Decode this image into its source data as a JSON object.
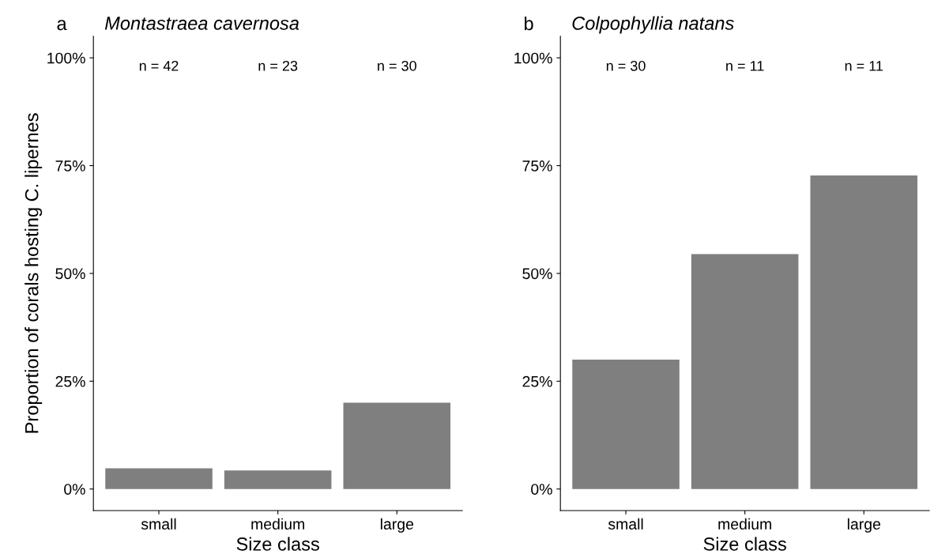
{
  "chart_data": [
    {
      "type": "bar",
      "title": "Montastraea cavernosa",
      "xlabel": "Size class",
      "ylabel": "Proportion of corals hosting C. lipernes",
      "categories": [
        "small",
        "medium",
        "large"
      ],
      "values": [
        4.8,
        4.3,
        20
      ],
      "color": "#7f7f7f",
      "ylim": [
        -5,
        105
      ],
      "yticks": [
        {
          "value": 0,
          "label": "0%"
        },
        {
          "value": 25,
          "label": "25%"
        },
        {
          "value": 50,
          "label": "50%"
        },
        {
          "value": 75,
          "label": "75%"
        },
        {
          "value": 100,
          "label": "100%"
        }
      ],
      "grid": false,
      "annotations": [
        "a",
        "n = 42",
        "n = 23",
        "n = 30"
      ]
    },
    {
      "type": "bar",
      "title": "Colpophyllia natans",
      "xlabel": "Size class",
      "categories": [
        "small",
        "medium",
        "large"
      ],
      "values": [
        30,
        54.5,
        72.7
      ],
      "color": "#7f7f7f",
      "ylim": [
        -5,
        105
      ],
      "yticks": [
        {
          "value": 0,
          "label": "0%"
        },
        {
          "value": 25,
          "label": "25%"
        },
        {
          "value": 50,
          "label": "50%"
        },
        {
          "value": 75,
          "label": "75%"
        },
        {
          "value": 100,
          "label": "100%"
        }
      ],
      "grid": false,
      "annotations": [
        "b",
        "n = 30",
        "n = 11",
        "n = 11"
      ]
    }
  ]
}
